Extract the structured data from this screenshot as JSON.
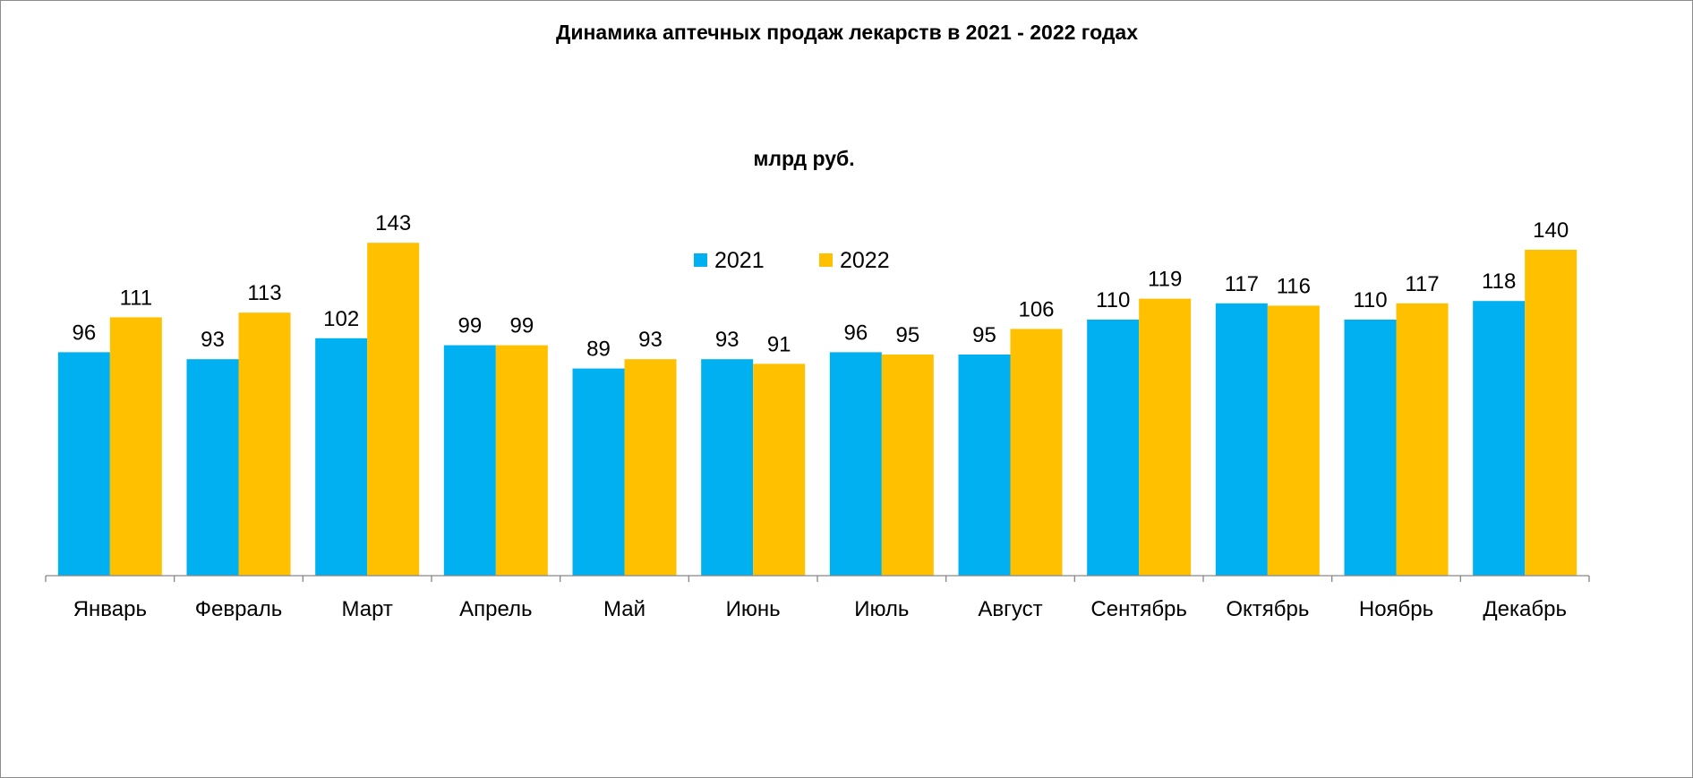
{
  "chart_data": {
    "type": "bar",
    "title": "Динамика аптечных продаж лекарств в 2021 - 2022 годах",
    "subtitle": "млрд руб.",
    "categories": [
      "Январь",
      "Февраль",
      "Март",
      "Апрель",
      "Май",
      "Июнь",
      "Июль",
      "Август",
      "Сентябрь",
      "Октябрь",
      "Ноябрь",
      "Декабрь"
    ],
    "series": [
      {
        "name": "2021",
        "color": "#00B0F0",
        "values": [
          96,
          93,
          102,
          99,
          89,
          93,
          96,
          95,
          110,
          117,
          110,
          118
        ]
      },
      {
        "name": "2022",
        "color": "#FFC000",
        "values": [
          111,
          113,
          143,
          99,
          93,
          91,
          95,
          106,
          119,
          116,
          117,
          140
        ]
      }
    ],
    "ylim": [
      0,
      143
    ],
    "grid": false,
    "legend": "top-center",
    "data_labels": true
  }
}
